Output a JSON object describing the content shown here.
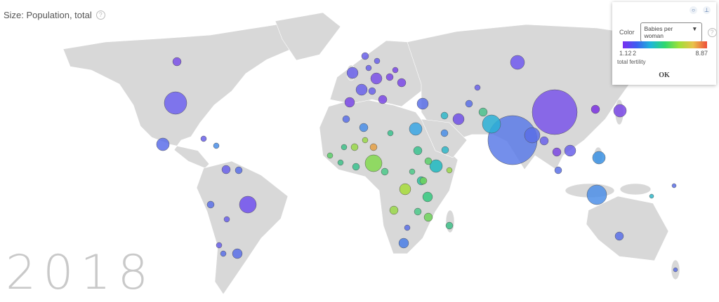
{
  "size_label": "Size: Population, total",
  "year": "2018",
  "color_panel": {
    "color_label": "Color",
    "selected_indicator": "Babies per woman",
    "scale_min": "1.12",
    "scale_mid": "2",
    "scale_max": "8.87",
    "indicator_short": "total fertility",
    "ok_label": "OK",
    "gradient_colors": [
      "#7a2ff0",
      "#3b5ff0",
      "#1fb7d8",
      "#2fd86e",
      "#9ee03a",
      "#e9c24a",
      "#ee4e3a"
    ]
  },
  "land_color": "#d8d8d8"
}
